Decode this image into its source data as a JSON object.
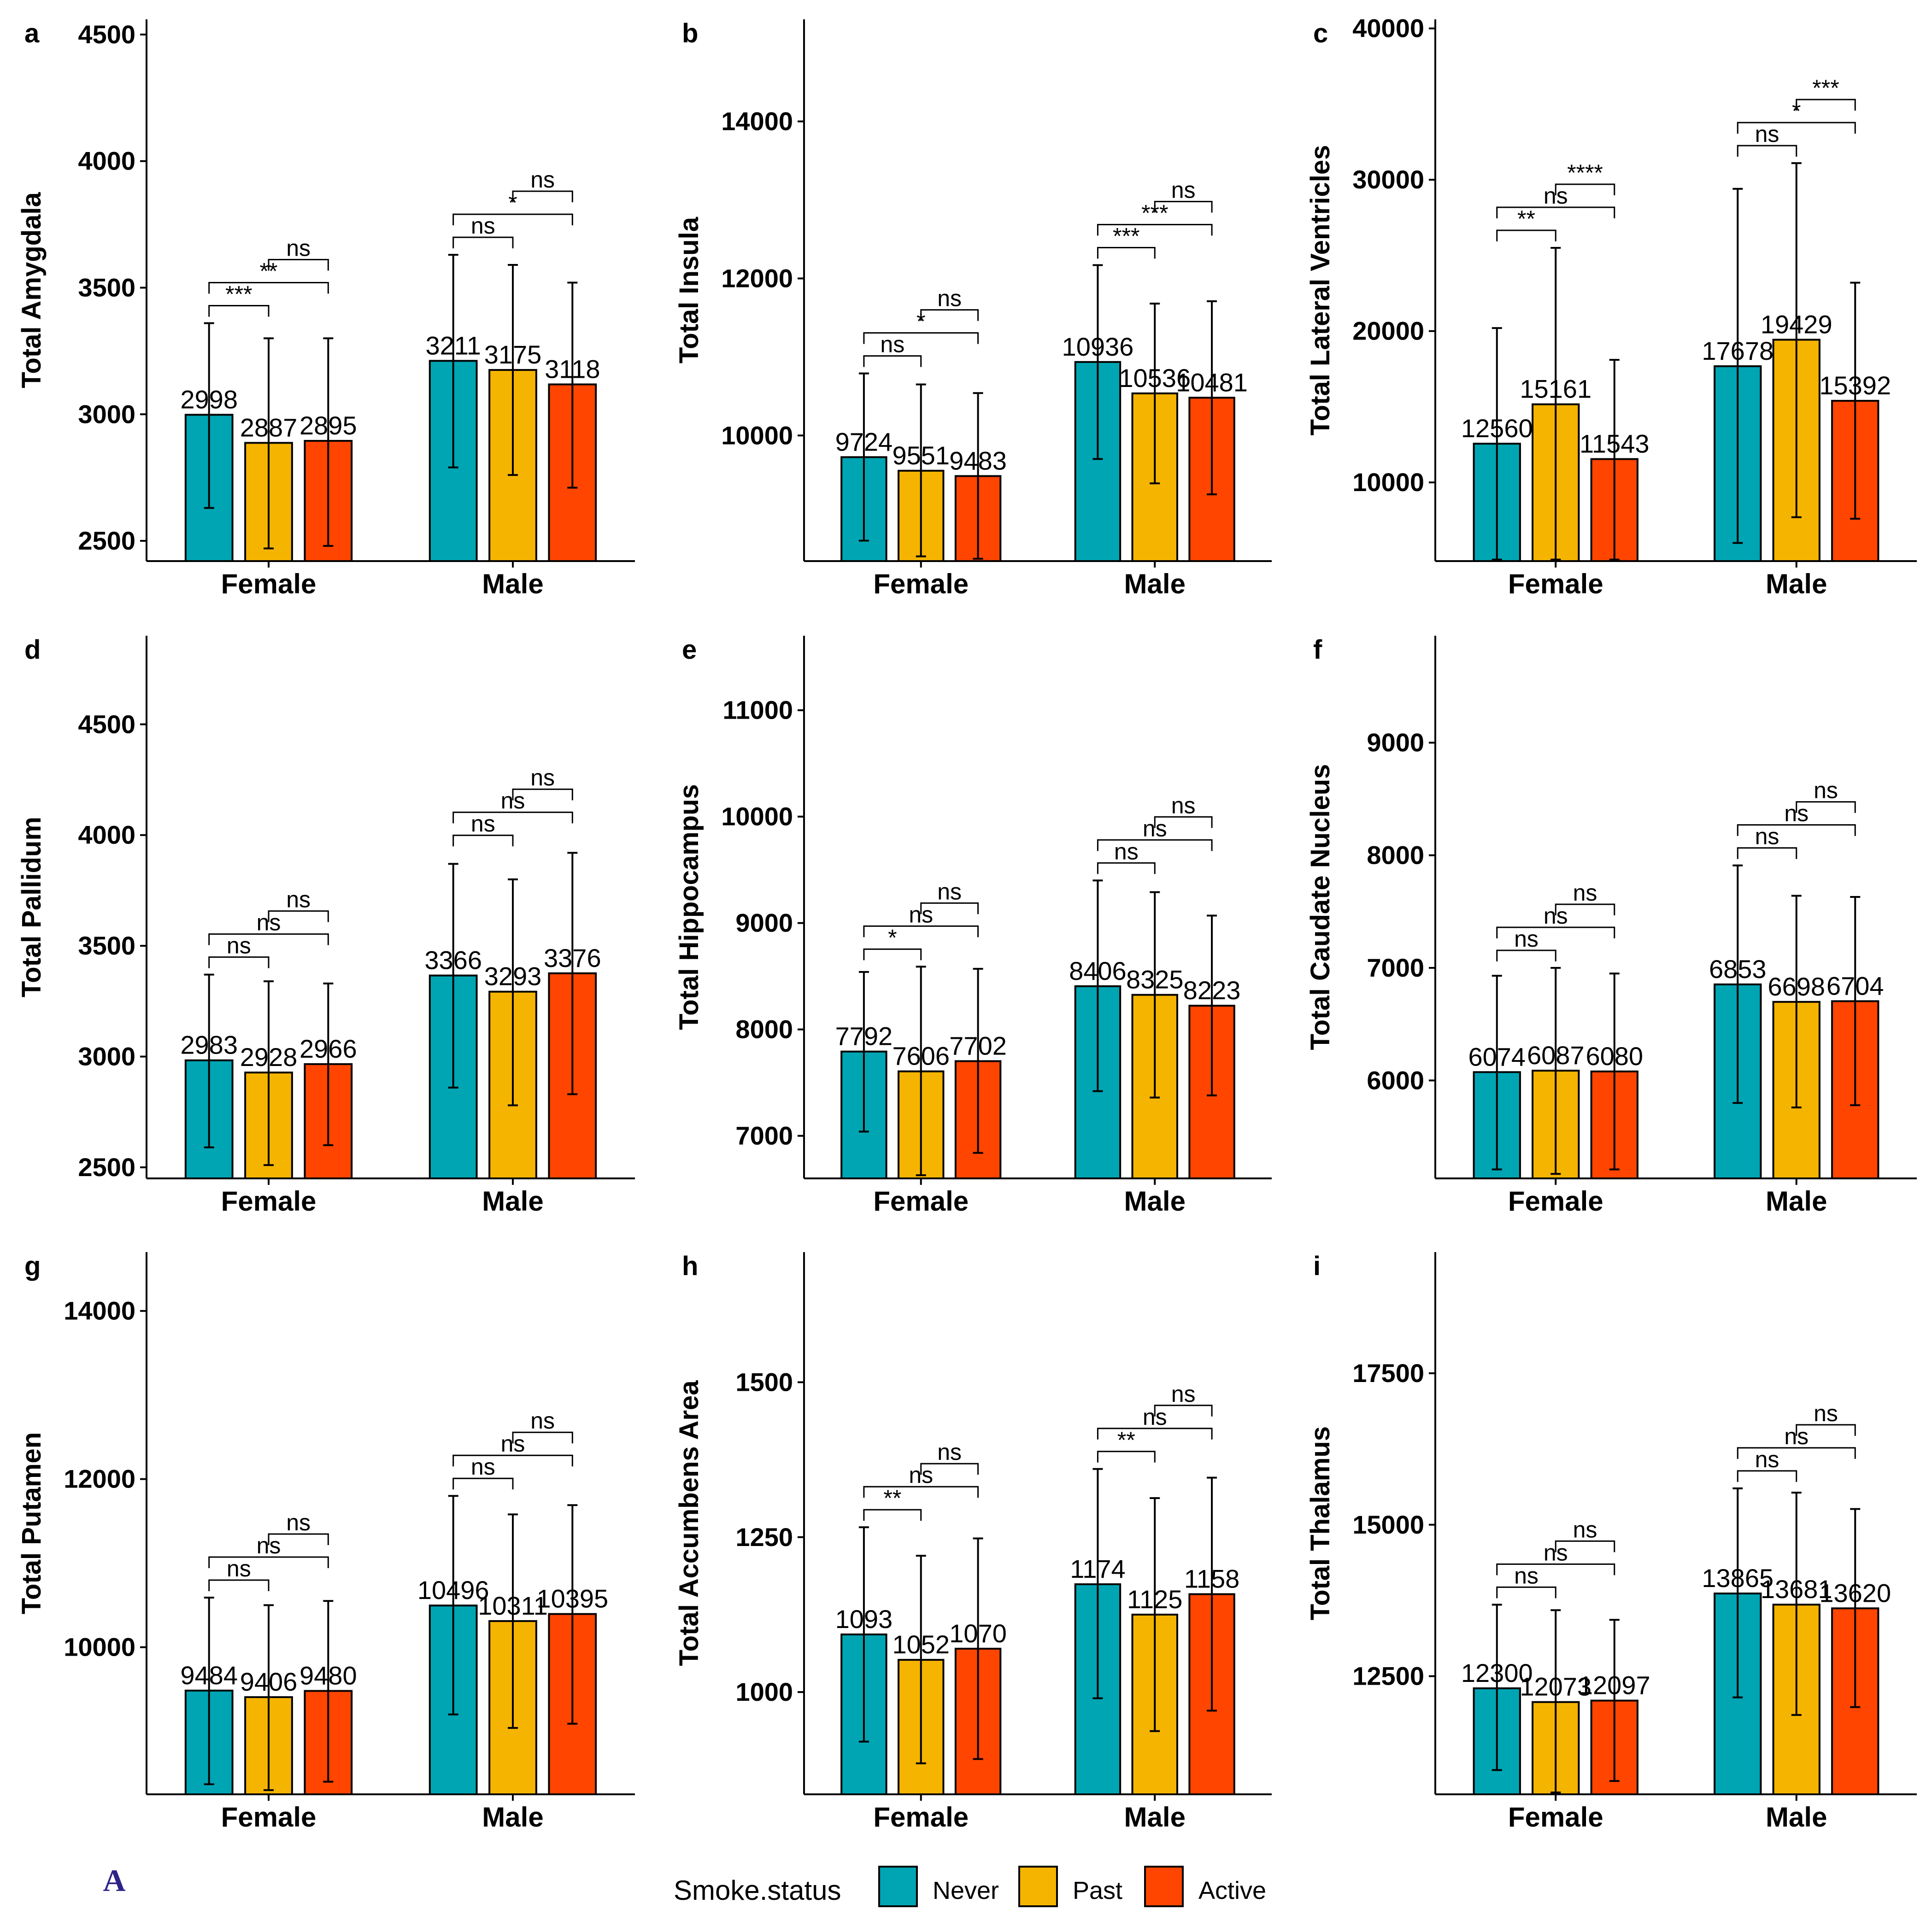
{
  "legend": {
    "title": "Smoke.status",
    "entries": [
      {
        "name": "Never",
        "color": "#00A5B3"
      },
      {
        "name": "Past",
        "color": "#F5B400"
      },
      {
        "name": "Active",
        "color": "#FF4500"
      }
    ]
  },
  "watermark": "A",
  "chart_data": [
    {
      "panel": "a",
      "type": "bar",
      "ylabel": "Total Amygdala",
      "categories": [
        "Female",
        "Male"
      ],
      "ylim": [
        2420,
        4560
      ],
      "yticks": [
        2500,
        3000,
        3500,
        4000,
        4500
      ],
      "series": [
        {
          "name": "Never",
          "values": [
            2998,
            3211
          ],
          "err_low": [
            2630,
            2790
          ],
          "err_high": [
            3360,
            3630
          ],
          "labels": [
            "2998",
            "3211"
          ]
        },
        {
          "name": "Past",
          "values": [
            2887,
            3175
          ],
          "err_low": [
            2470,
            2760
          ],
          "err_high": [
            3300,
            3590
          ],
          "labels": [
            "2887",
            "3175"
          ]
        },
        {
          "name": "Active",
          "values": [
            2895,
            3118
          ],
          "err_low": [
            2480,
            2710
          ],
          "err_high": [
            3300,
            3520
          ],
          "labels": [
            "2895",
            "3118"
          ]
        }
      ],
      "comparisons": [
        {
          "group": 0,
          "from": 0,
          "to": 1,
          "label": "***"
        },
        {
          "group": 0,
          "from": 0,
          "to": 2,
          "label": "**"
        },
        {
          "group": 0,
          "from": 1,
          "to": 2,
          "label": "ns"
        },
        {
          "group": 1,
          "from": 0,
          "to": 1,
          "label": "ns"
        },
        {
          "group": 1,
          "from": 0,
          "to": 2,
          "label": "*"
        },
        {
          "group": 1,
          "from": 1,
          "to": 2,
          "label": "ns"
        }
      ]
    },
    {
      "panel": "b",
      "type": "bar",
      "ylabel": "Total Insula",
      "categories": [
        "Female",
        "Male"
      ],
      "ylim": [
        8400,
        15300
      ],
      "yticks": [
        10000,
        12000,
        14000
      ],
      "series": [
        {
          "name": "Never",
          "values": [
            9724,
            10936
          ],
          "err_low": [
            8660,
            9700
          ],
          "err_high": [
            10790,
            12170
          ],
          "labels": [
            "9724",
            "10936"
          ]
        },
        {
          "name": "Past",
          "values": [
            9551,
            10536
          ],
          "err_low": [
            8460,
            9390
          ],
          "err_high": [
            10650,
            11680
          ],
          "labels": [
            "9551",
            "10536"
          ]
        },
        {
          "name": "Active",
          "values": [
            9483,
            10481
          ],
          "err_low": [
            8430,
            9250
          ],
          "err_high": [
            10540,
            11710
          ],
          "labels": [
            "9483",
            "10481"
          ]
        }
      ],
      "comparisons": [
        {
          "group": 0,
          "from": 0,
          "to": 1,
          "label": "ns"
        },
        {
          "group": 0,
          "from": 0,
          "to": 2,
          "label": "*"
        },
        {
          "group": 0,
          "from": 1,
          "to": 2,
          "label": "ns"
        },
        {
          "group": 1,
          "from": 0,
          "to": 1,
          "label": "***"
        },
        {
          "group": 1,
          "from": 0,
          "to": 2,
          "label": "***"
        },
        {
          "group": 1,
          "from": 1,
          "to": 2,
          "label": "ns"
        }
      ]
    },
    {
      "panel": "c",
      "type": "bar",
      "ylabel": "Total Lateral Ventricles",
      "categories": [
        "Female",
        "Male"
      ],
      "ylim": [
        4800,
        40600
      ],
      "yticks": [
        10000,
        20000,
        30000,
        40000
      ],
      "series": [
        {
          "name": "Never",
          "values": [
            12560,
            17678
          ],
          "err_low": [
            4900,
            6000
          ],
          "err_high": [
            20200,
            29400
          ],
          "labels": [
            "12560",
            "17678"
          ]
        },
        {
          "name": "Past",
          "values": [
            15161,
            19429
          ],
          "err_low": [
            4900,
            7700
          ],
          "err_high": [
            25500,
            31100
          ],
          "labels": [
            "15161",
            "19429"
          ]
        },
        {
          "name": "Active",
          "values": [
            11543,
            15392
          ],
          "err_low": [
            4900,
            7600
          ],
          "err_high": [
            18100,
            23200
          ],
          "labels": [
            "11543",
            "15392"
          ]
        }
      ],
      "comparisons": [
        {
          "group": 0,
          "from": 0,
          "to": 1,
          "label": "**"
        },
        {
          "group": 0,
          "from": 0,
          "to": 2,
          "label": "ns"
        },
        {
          "group": 0,
          "from": 1,
          "to": 2,
          "label": "****"
        },
        {
          "group": 1,
          "from": 0,
          "to": 1,
          "label": "ns"
        },
        {
          "group": 1,
          "from": 0,
          "to": 2,
          "label": "*"
        },
        {
          "group": 1,
          "from": 1,
          "to": 2,
          "label": "***"
        }
      ]
    },
    {
      "panel": "d",
      "type": "bar",
      "ylabel": "Total Pallidum",
      "categories": [
        "Female",
        "Male"
      ],
      "ylim": [
        2450,
        4900
      ],
      "yticks": [
        2500,
        3000,
        3500,
        4000,
        4500
      ],
      "series": [
        {
          "name": "Never",
          "values": [
            2983,
            3366
          ],
          "err_low": [
            2590,
            2860
          ],
          "err_high": [
            3370,
            3870
          ],
          "labels": [
            "2983",
            "3366"
          ]
        },
        {
          "name": "Past",
          "values": [
            2928,
            3293
          ],
          "err_low": [
            2510,
            2780
          ],
          "err_high": [
            3340,
            3800
          ],
          "labels": [
            "2928",
            "3293"
          ]
        },
        {
          "name": "Active",
          "values": [
            2966,
            3376
          ],
          "err_low": [
            2600,
            2830
          ],
          "err_high": [
            3330,
            3920
          ],
          "labels": [
            "2966",
            "3376"
          ]
        }
      ],
      "comparisons": [
        {
          "group": 0,
          "from": 0,
          "to": 1,
          "label": "ns"
        },
        {
          "group": 0,
          "from": 0,
          "to": 2,
          "label": "ns"
        },
        {
          "group": 0,
          "from": 1,
          "to": 2,
          "label": "ns"
        },
        {
          "group": 1,
          "from": 0,
          "to": 1,
          "label": "ns"
        },
        {
          "group": 1,
          "from": 0,
          "to": 2,
          "label": "ns"
        },
        {
          "group": 1,
          "from": 1,
          "to": 2,
          "label": "ns"
        }
      ]
    },
    {
      "panel": "e",
      "type": "bar",
      "ylabel": "Total Hippocampus",
      "categories": [
        "Female",
        "Male"
      ],
      "ylim": [
        6600,
        11700
      ],
      "yticks": [
        7000,
        8000,
        9000,
        10000,
        11000
      ],
      "series": [
        {
          "name": "Never",
          "values": [
            7792,
            8406
          ],
          "err_low": [
            7040,
            7420
          ],
          "err_high": [
            8540,
            9400
          ],
          "labels": [
            "7792",
            "8406"
          ]
        },
        {
          "name": "Past",
          "values": [
            7606,
            8325
          ],
          "err_low": [
            6630,
            7360
          ],
          "err_high": [
            8590,
            9290
          ],
          "labels": [
            "7606",
            "8325"
          ]
        },
        {
          "name": "Active",
          "values": [
            7702,
            8223
          ],
          "err_low": [
            6840,
            7380
          ],
          "err_high": [
            8570,
            9070
          ],
          "labels": [
            "7702",
            "8223"
          ]
        }
      ],
      "comparisons": [
        {
          "group": 0,
          "from": 0,
          "to": 1,
          "label": "*"
        },
        {
          "group": 0,
          "from": 0,
          "to": 2,
          "label": "ns"
        },
        {
          "group": 0,
          "from": 1,
          "to": 2,
          "label": "ns"
        },
        {
          "group": 1,
          "from": 0,
          "to": 1,
          "label": "ns"
        },
        {
          "group": 1,
          "from": 0,
          "to": 2,
          "label": "ns"
        },
        {
          "group": 1,
          "from": 1,
          "to": 2,
          "label": "ns"
        }
      ]
    },
    {
      "panel": "f",
      "type": "bar",
      "ylabel": "Total Caudate Nucleus",
      "categories": [
        "Female",
        "Male"
      ],
      "ylim": [
        5130,
        9950
      ],
      "yticks": [
        6000,
        7000,
        8000,
        9000
      ],
      "series": [
        {
          "name": "Never",
          "values": [
            6074,
            6853
          ],
          "err_low": [
            5210,
            5800
          ],
          "err_high": [
            6930,
            7910
          ],
          "labels": [
            "6074",
            "6853"
          ]
        },
        {
          "name": "Past",
          "values": [
            6087,
            6698
          ],
          "err_low": [
            5170,
            5760
          ],
          "err_high": [
            7000,
            7640
          ],
          "labels": [
            "6087",
            "6698"
          ]
        },
        {
          "name": "Active",
          "values": [
            6080,
            6704
          ],
          "err_low": [
            5210,
            5780
          ],
          "err_high": [
            6950,
            7630
          ],
          "labels": [
            "6080",
            "6704"
          ]
        }
      ],
      "comparisons": [
        {
          "group": 0,
          "from": 0,
          "to": 1,
          "label": "ns"
        },
        {
          "group": 0,
          "from": 0,
          "to": 2,
          "label": "ns"
        },
        {
          "group": 0,
          "from": 1,
          "to": 2,
          "label": "ns"
        },
        {
          "group": 1,
          "from": 0,
          "to": 1,
          "label": "ns"
        },
        {
          "group": 1,
          "from": 0,
          "to": 2,
          "label": "ns"
        },
        {
          "group": 1,
          "from": 1,
          "to": 2,
          "label": "ns"
        }
      ]
    },
    {
      "panel": "g",
      "type": "bar",
      "ylabel": "Total Putamen",
      "categories": [
        "Female",
        "Male"
      ],
      "ylim": [
        8250,
        14700
      ],
      "yticks": [
        10000,
        12000,
        14000
      ],
      "series": [
        {
          "name": "Never",
          "values": [
            9484,
            10496
          ],
          "err_low": [
            8370,
            9200
          ],
          "err_high": [
            10590,
            11800
          ],
          "labels": [
            "9484",
            "10496"
          ]
        },
        {
          "name": "Past",
          "values": [
            9406,
            10311
          ],
          "err_low": [
            8300,
            9040
          ],
          "err_high": [
            10500,
            11580
          ],
          "labels": [
            "9406",
            "10311"
          ]
        },
        {
          "name": "Active",
          "values": [
            9480,
            10395
          ],
          "err_low": [
            8400,
            9090
          ],
          "err_high": [
            10550,
            11690
          ],
          "labels": [
            "9480",
            "10395"
          ]
        }
      ],
      "comparisons": [
        {
          "group": 0,
          "from": 0,
          "to": 1,
          "label": "ns"
        },
        {
          "group": 0,
          "from": 0,
          "to": 2,
          "label": "ns"
        },
        {
          "group": 0,
          "from": 1,
          "to": 2,
          "label": "ns"
        },
        {
          "group": 1,
          "from": 0,
          "to": 1,
          "label": "ns"
        },
        {
          "group": 1,
          "from": 0,
          "to": 2,
          "label": "ns"
        },
        {
          "group": 1,
          "from": 1,
          "to": 2,
          "label": "ns"
        }
      ]
    },
    {
      "panel": "h",
      "type": "bar",
      "ylabel": "Total Accumbens Area",
      "categories": [
        "Female",
        "Male"
      ],
      "ylim": [
        835,
        1710
      ],
      "yticks": [
        1000,
        1250,
        1500
      ],
      "series": [
        {
          "name": "Never",
          "values": [
            1093,
            1174
          ],
          "err_low": [
            920,
            990
          ],
          "err_high": [
            1266,
            1360
          ],
          "labels": [
            "1093",
            "1174"
          ]
        },
        {
          "name": "Past",
          "values": [
            1052,
            1125
          ],
          "err_low": [
            885,
            937
          ],
          "err_high": [
            1220,
            1313
          ],
          "labels": [
            "1052",
            "1125"
          ]
        },
        {
          "name": "Active",
          "values": [
            1070,
            1158
          ],
          "err_low": [
            892,
            970
          ],
          "err_high": [
            1248,
            1346
          ],
          "labels": [
            "1070",
            "1158"
          ]
        }
      ],
      "comparisons": [
        {
          "group": 0,
          "from": 0,
          "to": 1,
          "label": "**"
        },
        {
          "group": 0,
          "from": 0,
          "to": 2,
          "label": "ns"
        },
        {
          "group": 0,
          "from": 1,
          "to": 2,
          "label": "ns"
        },
        {
          "group": 1,
          "from": 0,
          "to": 1,
          "label": "**"
        },
        {
          "group": 1,
          "from": 0,
          "to": 2,
          "label": "ns"
        },
        {
          "group": 1,
          "from": 1,
          "to": 2,
          "label": "ns"
        }
      ]
    },
    {
      "panel": "i",
      "type": "bar",
      "ylabel": "Total Thalamus",
      "categories": [
        "Female",
        "Male"
      ],
      "ylim": [
        10550,
        19500
      ],
      "yticks": [
        12500,
        15000,
        17500
      ],
      "series": [
        {
          "name": "Never",
          "values": [
            12300,
            13865
          ],
          "err_low": [
            10950,
            12150
          ],
          "err_high": [
            13680,
            15600
          ],
          "labels": [
            "12300",
            "13865"
          ]
        },
        {
          "name": "Past",
          "values": [
            12073,
            13681
          ],
          "err_low": [
            10580,
            11860
          ],
          "err_high": [
            13590,
            15530
          ],
          "labels": [
            "12073",
            "13681"
          ]
        },
        {
          "name": "Active",
          "values": [
            12097,
            13620
          ],
          "err_low": [
            10770,
            11990
          ],
          "err_high": [
            13430,
            15260
          ],
          "labels": [
            "12097",
            "13620"
          ]
        }
      ],
      "comparisons": [
        {
          "group": 0,
          "from": 0,
          "to": 1,
          "label": "ns"
        },
        {
          "group": 0,
          "from": 0,
          "to": 2,
          "label": "ns"
        },
        {
          "group": 0,
          "from": 1,
          "to": 2,
          "label": "ns"
        },
        {
          "group": 1,
          "from": 0,
          "to": 1,
          "label": "ns"
        },
        {
          "group": 1,
          "from": 0,
          "to": 2,
          "label": "ns"
        },
        {
          "group": 1,
          "from": 1,
          "to": 2,
          "label": "ns"
        }
      ]
    }
  ]
}
